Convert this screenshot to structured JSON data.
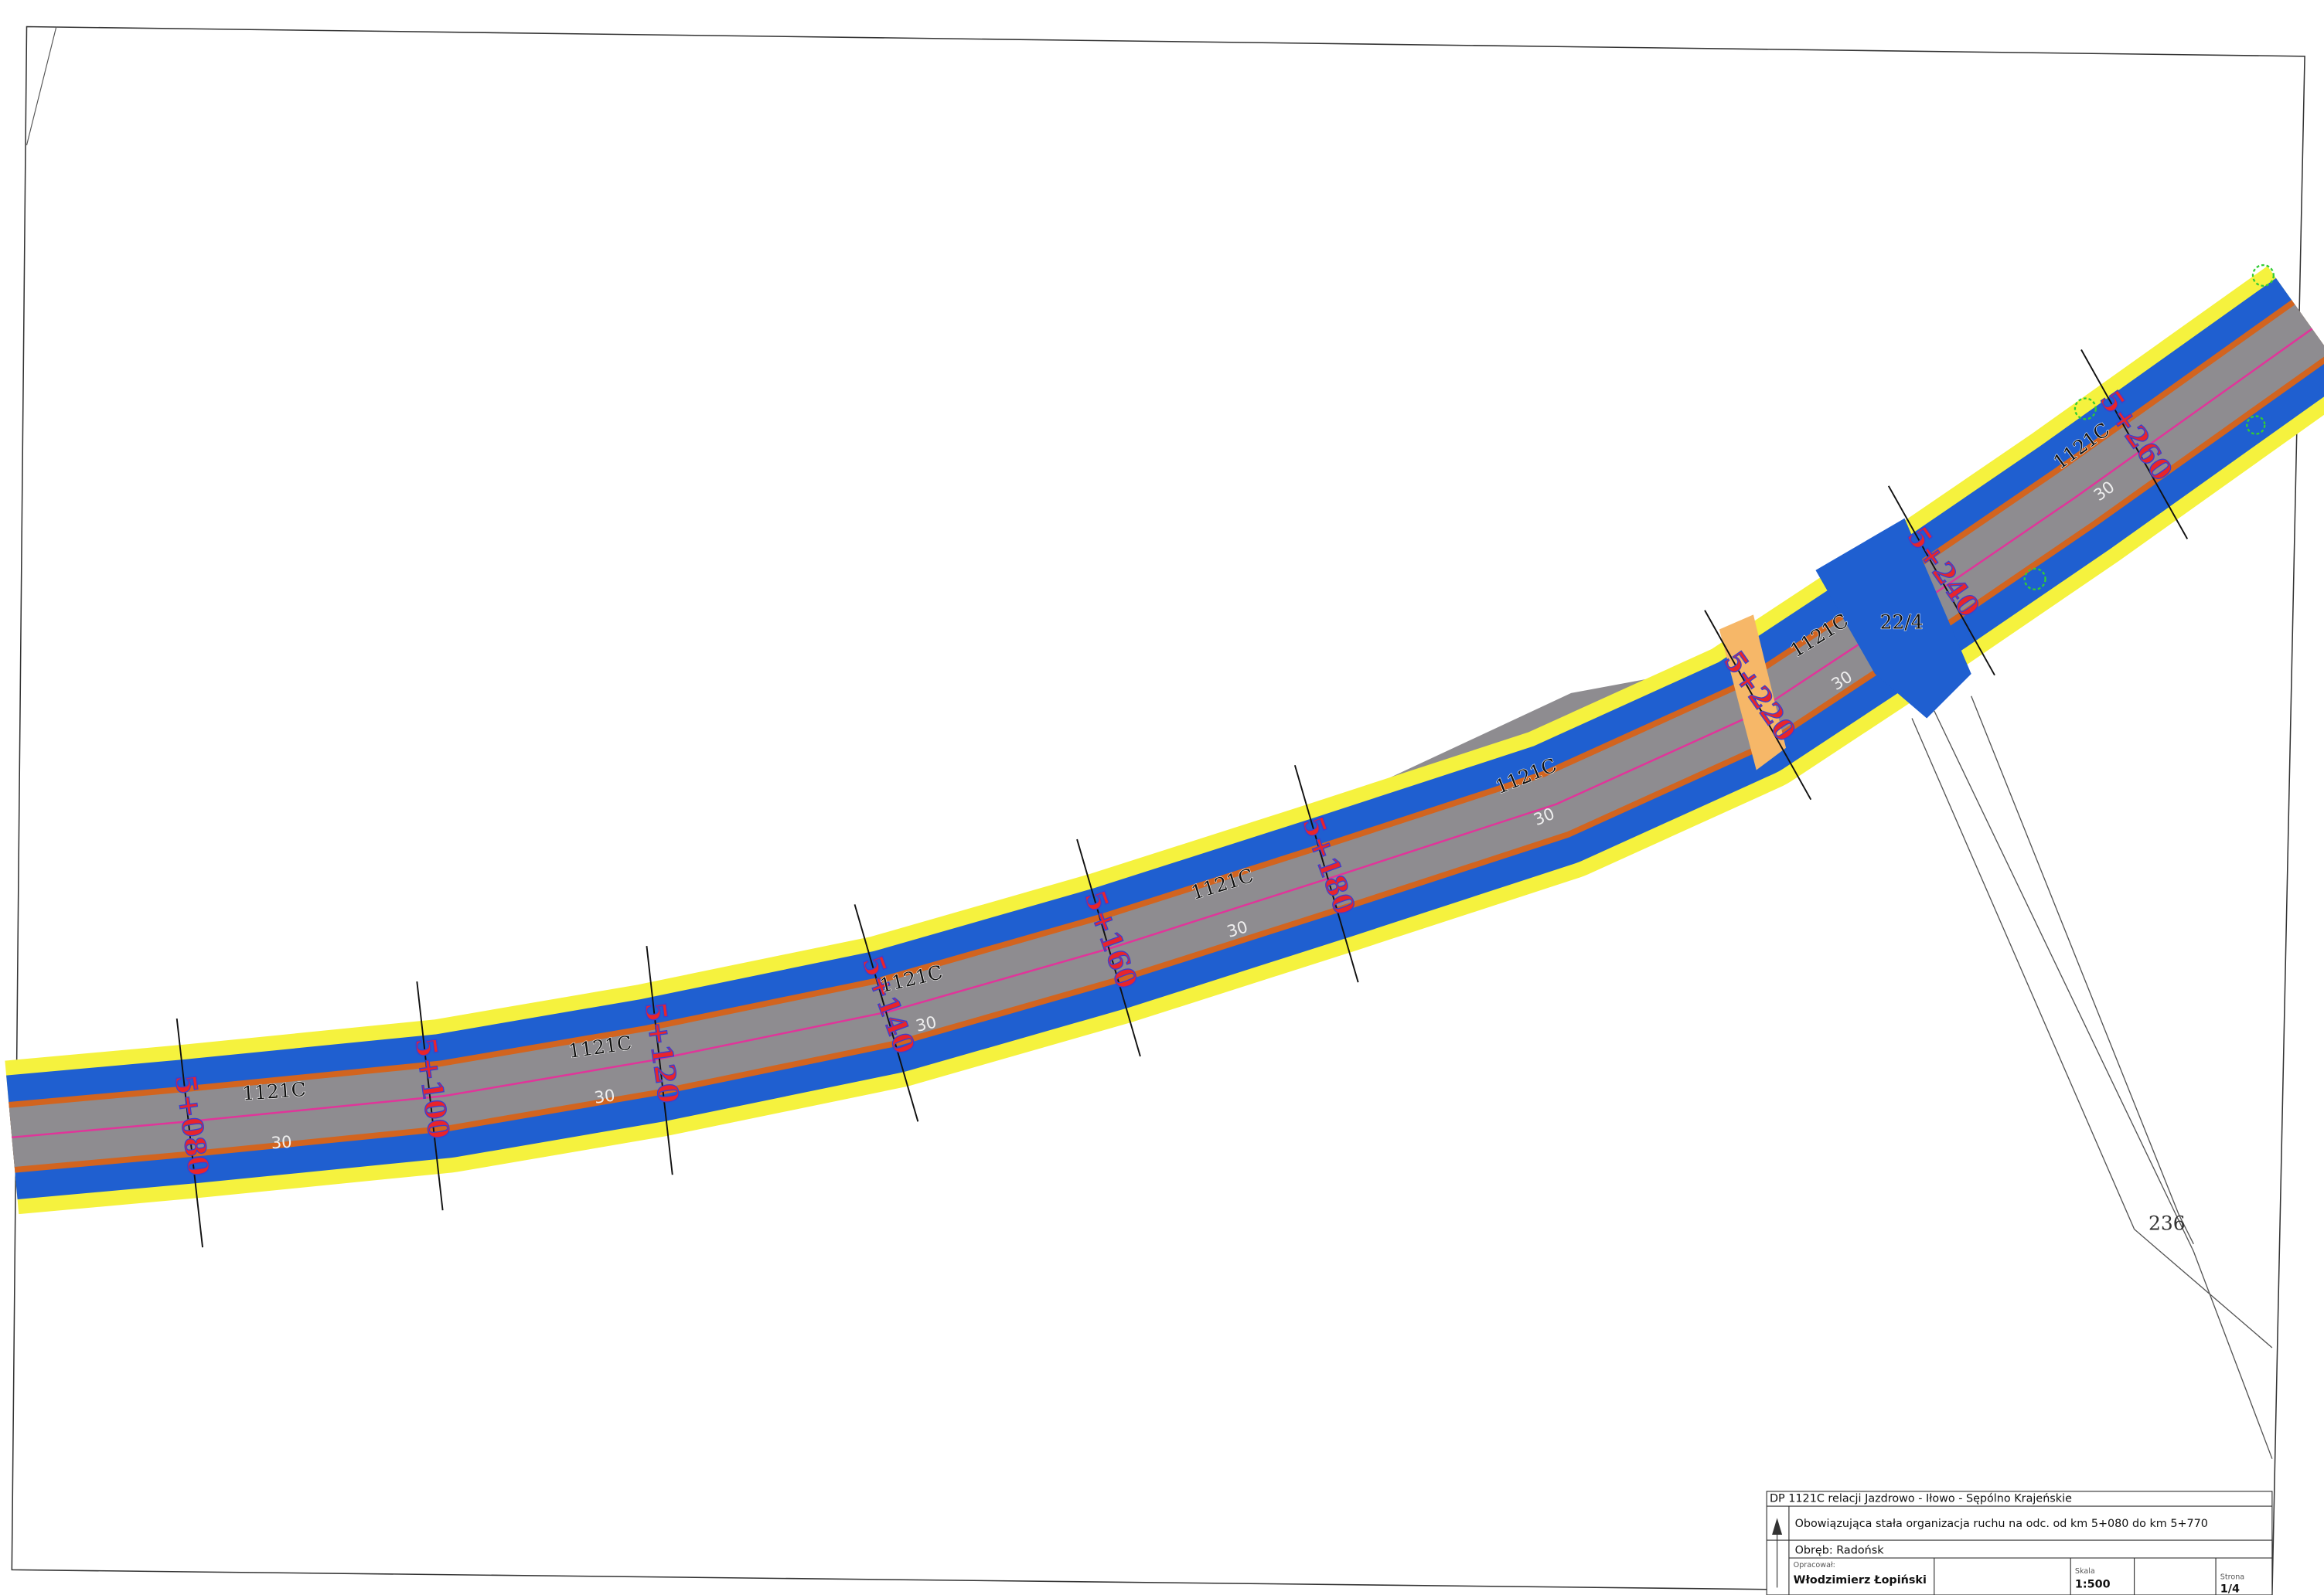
{
  "stations": [
    "5+080",
    "5+100",
    "5+120",
    "5+140",
    "5+160",
    "5+180",
    "5+220",
    "5+240",
    "5+260"
  ],
  "road_labels": [
    "1121C",
    "1121C",
    "1121C",
    "1121C",
    "1121C",
    "1121C",
    "1121C"
  ],
  "speed_labels": [
    "30",
    "30",
    "30",
    "30",
    "30",
    "30",
    "30"
  ],
  "parcels": [
    "22/4",
    "236"
  ],
  "title_block": {
    "road": "DP 1121C relacji Jazdrowo - Iłowo - Sępólno Krajeńskie",
    "subject": "Obowiązująca stała organizacja ruchu na odc. od km 5+080 do km 5+770",
    "area": "Obręb: Radońsk",
    "author_label": "Opracował:",
    "author": "Włodzimierz Łopiński",
    "scale_label": "Skala",
    "scale": "1:500",
    "page_label": "Strona",
    "page": "1/4"
  }
}
